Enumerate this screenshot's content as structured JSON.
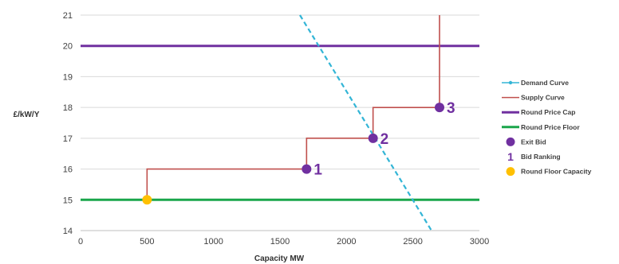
{
  "chart_data": {
    "type": "line",
    "xlabel": "Capacity MW",
    "ylabel": "£/kW/Y",
    "xlim": [
      0,
      3000
    ],
    "ylim": [
      14,
      21
    ],
    "x_ticks": [
      "0",
      "500",
      "1000",
      "1500",
      "2000",
      "2500",
      "3000"
    ],
    "y_ticks": [
      "14",
      "15",
      "16",
      "17",
      "18",
      "19",
      "20",
      "21"
    ],
    "grid": "horizontal",
    "legend_position": "right",
    "series": [
      {
        "name": "Demand Curve",
        "color": "#33b5d6",
        "style": "dashed",
        "points": [
          [
            1650,
            21
          ],
          [
            2640,
            14
          ]
        ]
      },
      {
        "name": "Supply Curve",
        "color": "#c0504d",
        "style": "step",
        "points": [
          [
            500,
            15
          ],
          [
            500,
            16
          ],
          [
            1700,
            16
          ],
          [
            1700,
            17
          ],
          [
            2200,
            17
          ],
          [
            2200,
            18
          ],
          [
            2700,
            18
          ],
          [
            2700,
            21
          ]
        ]
      },
      {
        "name": "Round Price Cap",
        "color": "#7030a0",
        "value": 20
      },
      {
        "name": "Round Price Floor",
        "color": "#1aa64b",
        "value": 15
      },
      {
        "name": "Exit Bid",
        "color": "#7030a0",
        "points": [
          [
            1700,
            16
          ],
          [
            2200,
            17
          ],
          [
            2700,
            18
          ]
        ]
      },
      {
        "name": "Bid Ranking",
        "color": "#7030a0",
        "labels": [
          {
            "text": "1",
            "x": 1700,
            "y": 16
          },
          {
            "text": "2",
            "x": 2200,
            "y": 17
          },
          {
            "text": "3",
            "x": 2700,
            "y": 18
          }
        ]
      },
      {
        "name": "Round Floor Capacity",
        "color": "#ffc000",
        "points": [
          [
            500,
            15
          ]
        ]
      }
    ],
    "legend": [
      {
        "label": "Demand Curve",
        "kind": "line-marker",
        "color": "#33b5d6"
      },
      {
        "label": "Supply Curve",
        "kind": "line",
        "color": "#c0504d"
      },
      {
        "label": "Round Price Cap",
        "kind": "thick-line",
        "color": "#7030a0"
      },
      {
        "label": "Round Price Floor",
        "kind": "thick-line",
        "color": "#1aa64b"
      },
      {
        "label": "Exit Bid",
        "kind": "dot",
        "color": "#7030a0"
      },
      {
        "label": "Bid Ranking",
        "kind": "text",
        "symbol": "1",
        "color": "#7030a0"
      },
      {
        "label": "Round Floor Capacity",
        "kind": "dot",
        "color": "#ffc000"
      }
    ]
  }
}
